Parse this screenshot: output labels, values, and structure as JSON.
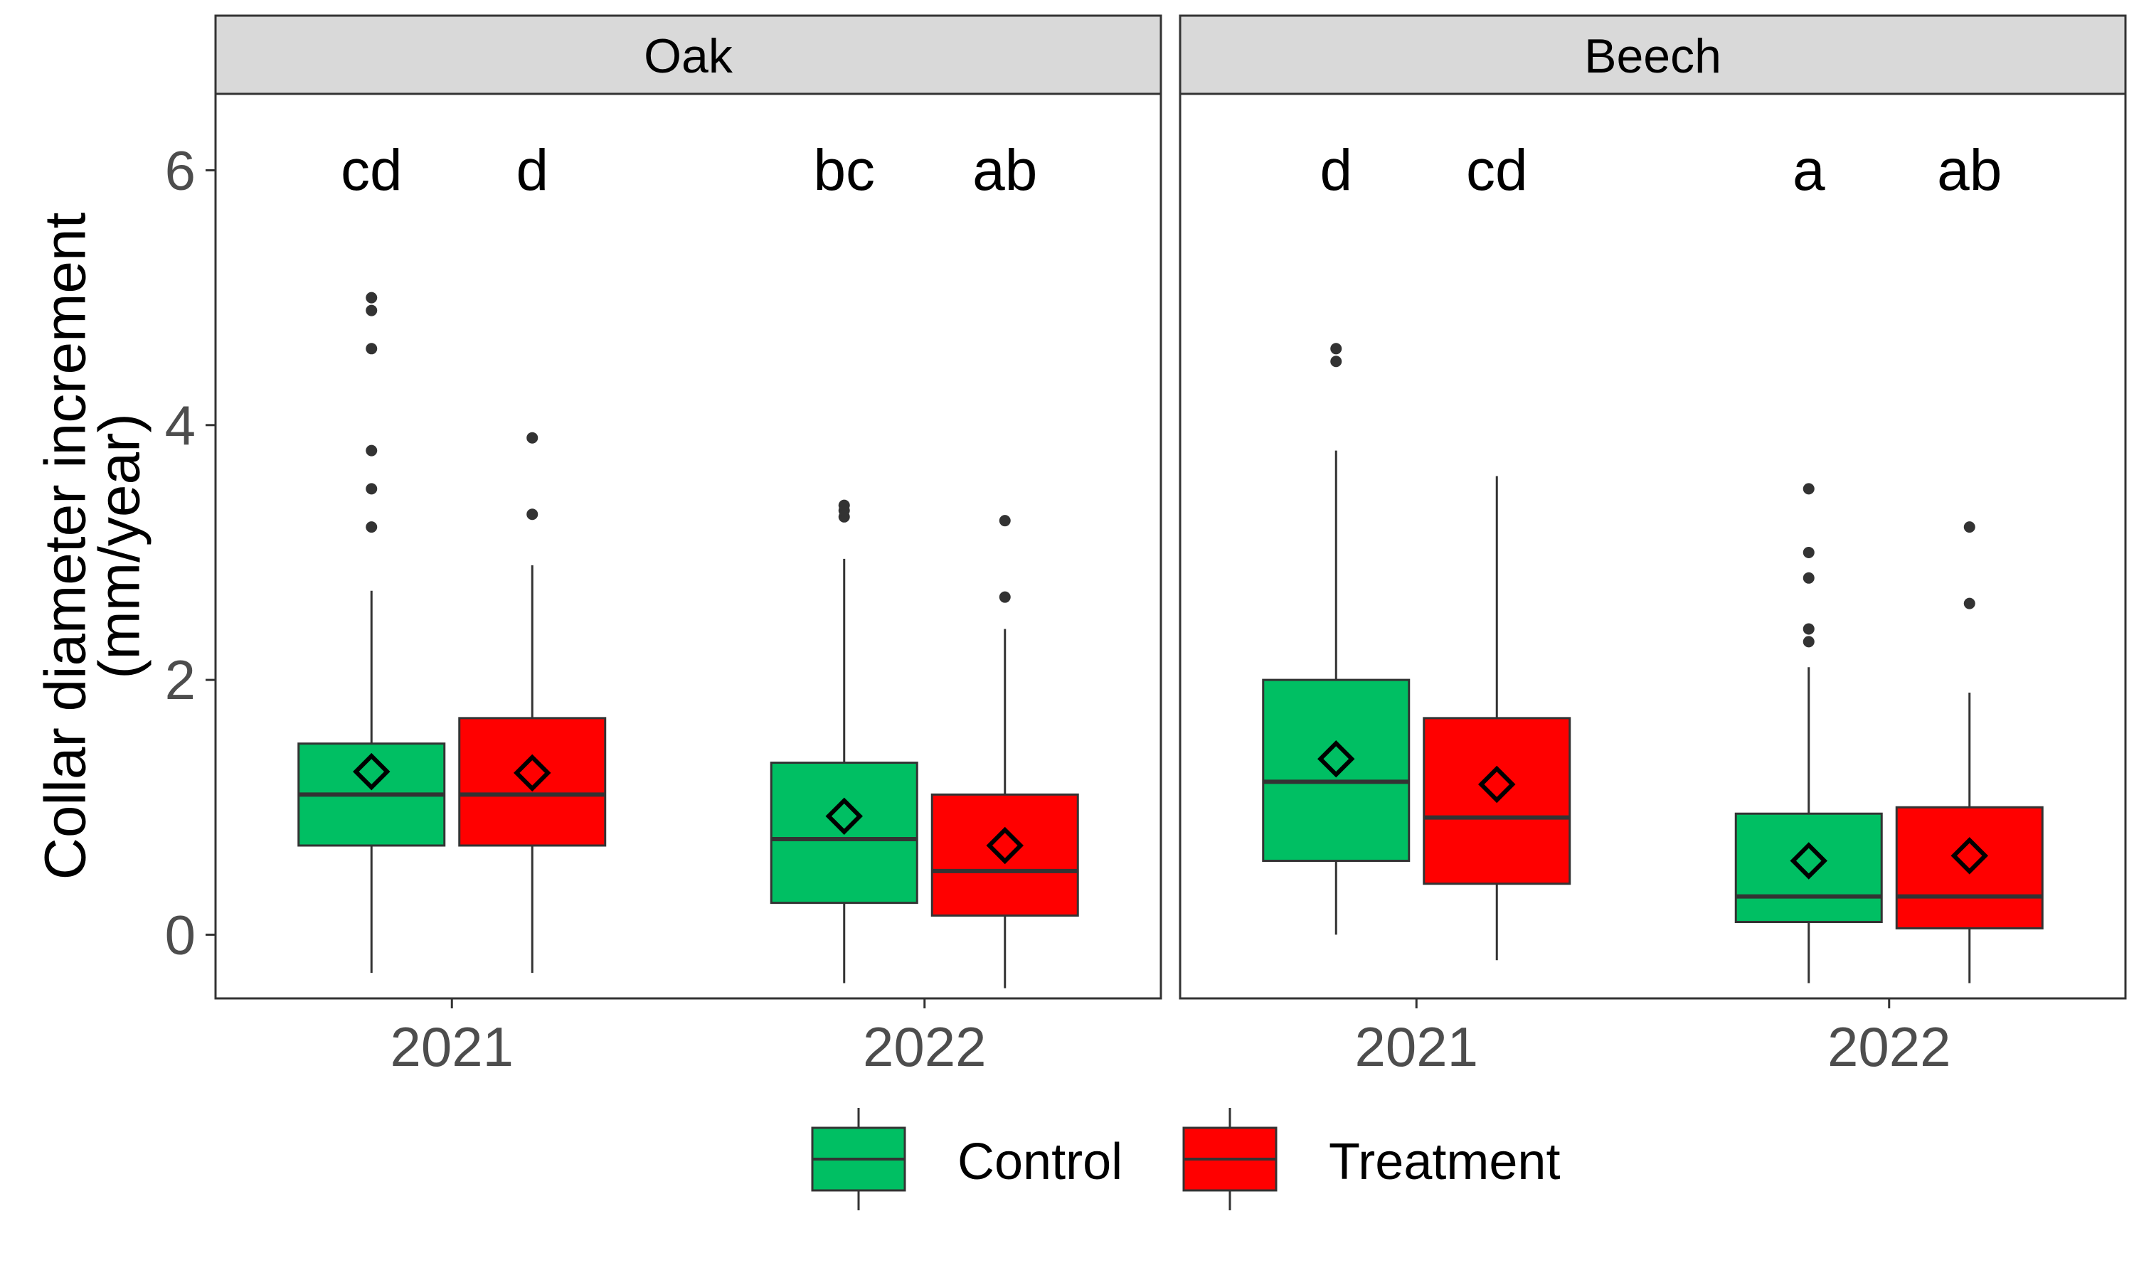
{
  "chart_data": {
    "type": "boxplot",
    "ylabel": "Collar diameter increment\n(mm/year)",
    "ylim": [
      -0.5,
      6.6
    ],
    "yticks": [
      0,
      2,
      4,
      6
    ],
    "categories": [
      "2021",
      "2022"
    ],
    "legend": {
      "position": "bottom",
      "items": [
        {
          "name": "Control",
          "color": "#00BF63"
        },
        {
          "name": "Treatment",
          "color": "#FF0000"
        }
      ]
    },
    "grid": false,
    "mean_marker": "diamond",
    "panels": [
      {
        "title": "Oak",
        "groups": [
          {
            "year": "2021",
            "treatment": "Control",
            "letter": "cd",
            "whisker_low": -0.3,
            "q1": 0.7,
            "median": 1.1,
            "q3": 1.5,
            "whisker_high": 2.7,
            "mean": 1.28,
            "outliers": [
              3.2,
              3.5,
              3.8,
              4.6,
              4.9,
              5.0
            ]
          },
          {
            "year": "2021",
            "treatment": "Treatment",
            "letter": "d",
            "whisker_low": -0.3,
            "q1": 0.7,
            "median": 1.1,
            "q3": 1.7,
            "whisker_high": 2.9,
            "mean": 1.27,
            "outliers": [
              3.3,
              3.9
            ]
          },
          {
            "year": "2022",
            "treatment": "Control",
            "letter": "bc",
            "whisker_low": -0.38,
            "q1": 0.25,
            "median": 0.75,
            "q3": 1.35,
            "whisker_high": 2.95,
            "mean": 0.93,
            "outliers": [
              3.28,
              3.33,
              3.37
            ]
          },
          {
            "year": "2022",
            "treatment": "Treatment",
            "letter": "ab",
            "whisker_low": -0.42,
            "q1": 0.15,
            "median": 0.5,
            "q3": 1.1,
            "whisker_high": 2.4,
            "mean": 0.7,
            "outliers": [
              2.65,
              3.25
            ]
          }
        ]
      },
      {
        "title": "Beech",
        "groups": [
          {
            "year": "2021",
            "treatment": "Control",
            "letter": "d",
            "whisker_low": 0.0,
            "q1": 0.58,
            "median": 1.2,
            "q3": 2.0,
            "whisker_high": 3.8,
            "mean": 1.38,
            "outliers": [
              4.5,
              4.6
            ]
          },
          {
            "year": "2021",
            "treatment": "Treatment",
            "letter": "cd",
            "whisker_low": -0.2,
            "q1": 0.4,
            "median": 0.92,
            "q3": 1.7,
            "whisker_high": 3.6,
            "mean": 1.18,
            "outliers": []
          },
          {
            "year": "2022",
            "treatment": "Control",
            "letter": "a",
            "whisker_low": -0.38,
            "q1": 0.1,
            "median": 0.3,
            "q3": 0.95,
            "whisker_high": 2.1,
            "mean": 0.58,
            "outliers": [
              2.3,
              2.4,
              2.8,
              3.0,
              3.5
            ]
          },
          {
            "year": "2022",
            "treatment": "Treatment",
            "letter": "ab",
            "whisker_low": -0.38,
            "q1": 0.05,
            "median": 0.3,
            "q3": 1.0,
            "whisker_high": 1.9,
            "mean": 0.62,
            "outliers": [
              2.6,
              3.2
            ]
          }
        ]
      }
    ]
  }
}
